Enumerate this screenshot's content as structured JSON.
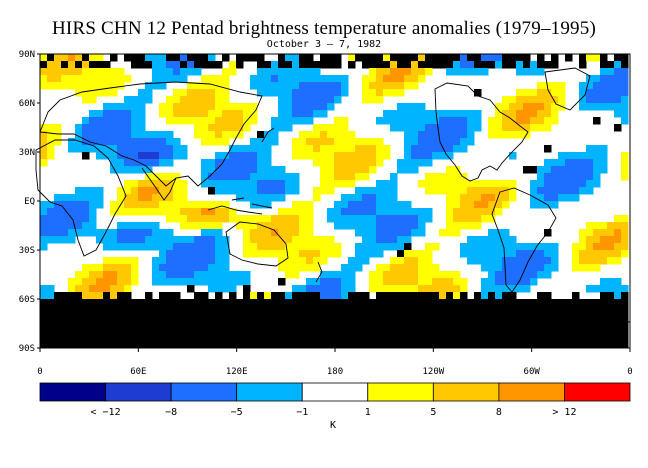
{
  "title": "HIRS CHN 12 Pentad brightness temperature anomalies (1979–1995)",
  "subtitle": "October 3 – 7, 1982",
  "lat_labels": [
    "90N",
    "60N",
    "30N",
    "EQ",
    "30S",
    "60S",
    "90S"
  ],
  "lon_labels": [
    "0",
    "60E",
    "120E",
    "180",
    "120W",
    "60W",
    "0"
  ],
  "colorbar": {
    "colors": [
      "#00008b",
      "#1e3cd2",
      "#1e6eff",
      "#00b4ff",
      "#ffffff",
      "#ffff00",
      "#ffc800",
      "#ff9600",
      "#ff0000"
    ],
    "labels": [
      "< −12",
      "−8",
      "−5",
      "−1",
      "1",
      "5",
      "8",
      "> 12"
    ],
    "unit": "K"
  },
  "map_colors": {
    "missing": "#000000",
    "coastline": "#000000"
  }
}
